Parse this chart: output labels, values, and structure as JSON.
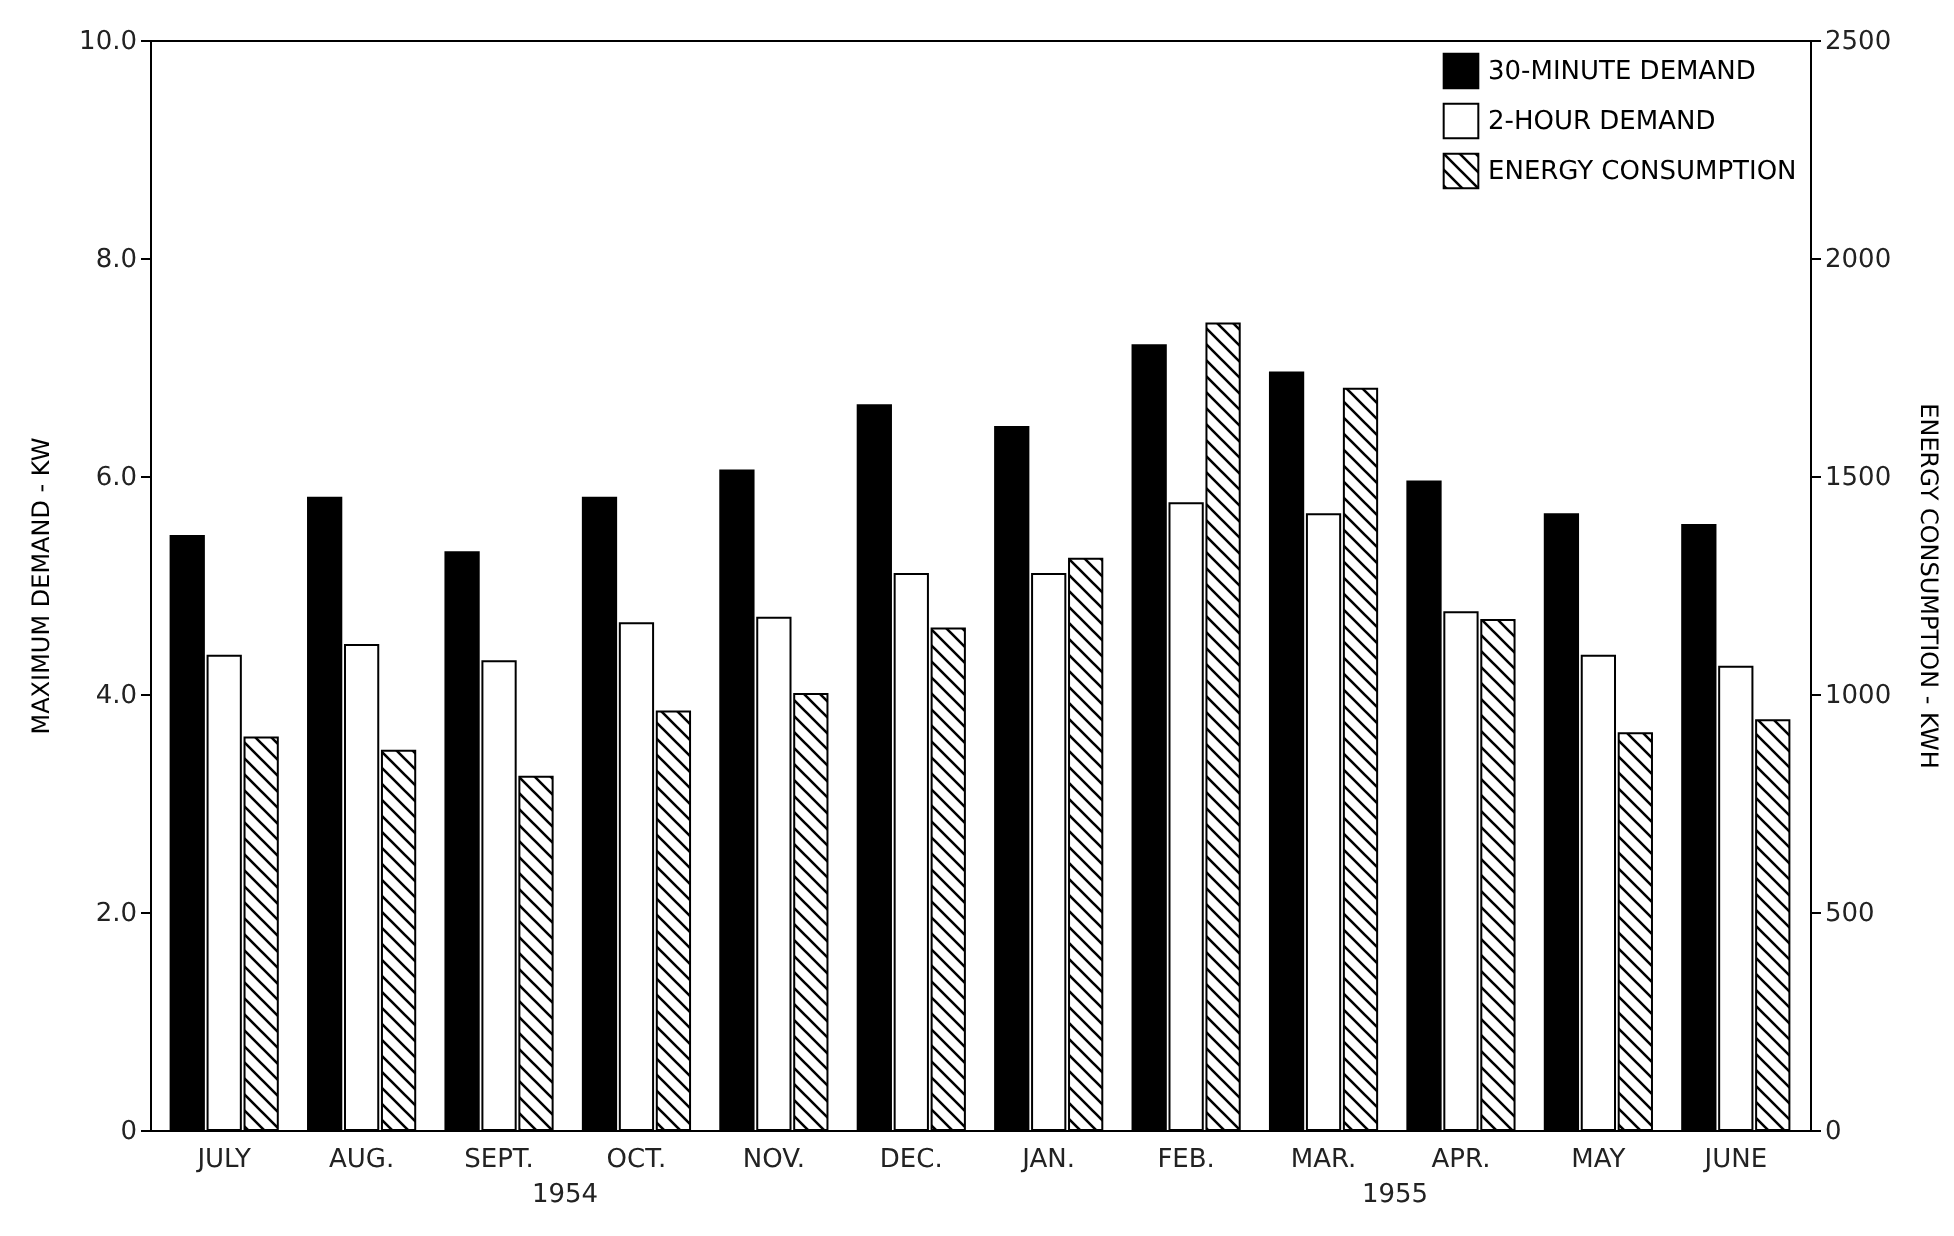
{
  "chart_data": {
    "type": "bar",
    "categories": [
      "JULY",
      "AUG.",
      "SEPT.",
      "OCT.",
      "NOV.",
      "DEC.",
      "JAN.",
      "FEB.",
      "MAR.",
      "APR.",
      "MAY",
      "JUNE"
    ],
    "series": [
      {
        "name": "30-MINUTE DEMAND",
        "color": "#000000",
        "values": [
          5.45,
          5.8,
          5.3,
          5.8,
          6.05,
          6.65,
          6.45,
          7.2,
          6.95,
          5.95,
          5.65,
          5.55
        ]
      },
      {
        "name": "2-HOUR DEMAND",
        "color": "#ffffff",
        "values": [
          4.35,
          4.45,
          4.3,
          4.65,
          4.7,
          5.1,
          5.1,
          5.75,
          5.65,
          4.75,
          4.35,
          4.25
        ]
      },
      {
        "name": "ENERGY CONSUMPTION",
        "color": "#000000",
        "axis": "y2",
        "values": [
          900,
          870,
          810,
          960,
          1000,
          1150,
          1310,
          1850,
          1700,
          1170,
          910,
          940
        ]
      }
    ],
    "ylabel": "MAXIMUM DEMAND - KW",
    "y2label": "ENERGY CONSUMPTION - KWH",
    "ylim": [
      0,
      10
    ],
    "yticks": [
      0,
      {
        "value": 2,
        "label": "2.0"
      },
      {
        "value": 4,
        "label": "4.0"
      },
      {
        "value": 6,
        "label": "6.0"
      },
      {
        "value": 8,
        "label": "8.0"
      },
      {
        "value": 10,
        "label": "10.0"
      }
    ],
    "y2lim": [
      0,
      2500
    ],
    "y2ticks": [
      0,
      500,
      1000,
      1500,
      2000,
      2500
    ],
    "annotations": [
      "1954",
      "1955"
    ],
    "legend": "top right",
    "grid": false
  }
}
